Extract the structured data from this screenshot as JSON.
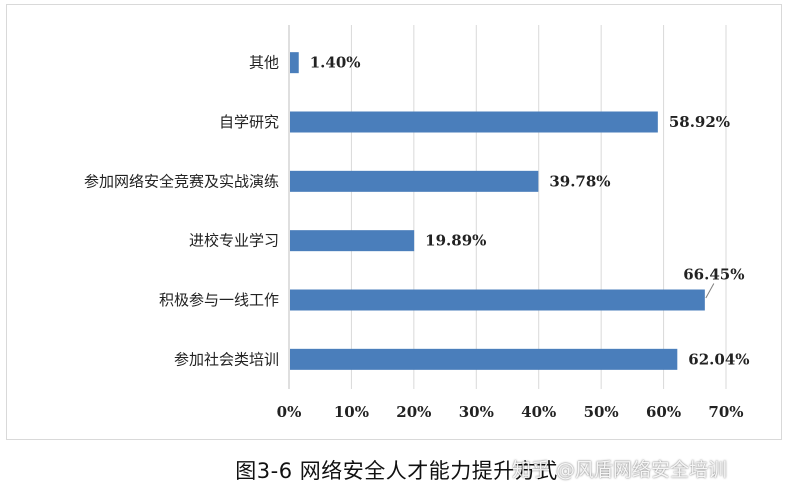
{
  "chart_data": {
    "type": "bar",
    "orientation": "horizontal",
    "categories": [
      "其他",
      "自学研究",
      "参加网络安全竞赛及实战演练",
      "进校专业学习",
      "积极参与一线工作",
      "参加社会类培训"
    ],
    "values": [
      1.4,
      58.92,
      39.78,
      19.89,
      66.45,
      62.04
    ],
    "data_labels": [
      "1.40%",
      "58.92%",
      "39.78%",
      "19.89%",
      "66.45%",
      "62.04%"
    ],
    "xlim": [
      0,
      70
    ],
    "x_ticks": [
      "0%",
      "10%",
      "20%",
      "30%",
      "40%",
      "50%",
      "60%",
      "70%"
    ],
    "grid": "vertical",
    "title": "",
    "xlabel": "",
    "ylabel": "",
    "bar_color": "#4a7ebb"
  },
  "caption": "图3-6 网络安全人才能力提升方式",
  "watermark": "知乎 @风盾网络安全培训"
}
